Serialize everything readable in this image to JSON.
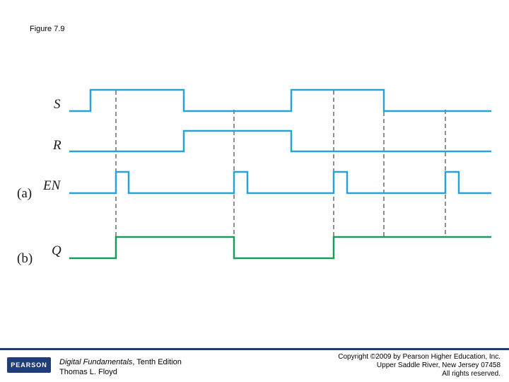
{
  "figure_title": "Figure 7.9",
  "signals": [
    {
      "name": "S",
      "color": "#29a3d6"
    },
    {
      "name": "R",
      "color": "#29a3d6"
    },
    {
      "name": "EN",
      "color": "#29a3d6"
    },
    {
      "name": "Q",
      "color": "#1a9b5a"
    }
  ],
  "part_labels": [
    "(a)",
    "(b)"
  ],
  "footer": {
    "logo_text": "PEARSON",
    "book_title": "Digital Fundamentals",
    "book_edition": ", Tenth Edition",
    "book_author": "Thomas L. Floyd",
    "copyright_line1": "Copyright ©2009 by Pearson Higher Education, Inc.",
    "copyright_line2": "Upper Saddle River, New Jersey 07458",
    "copyright_line3": "All rights reserved."
  }
}
